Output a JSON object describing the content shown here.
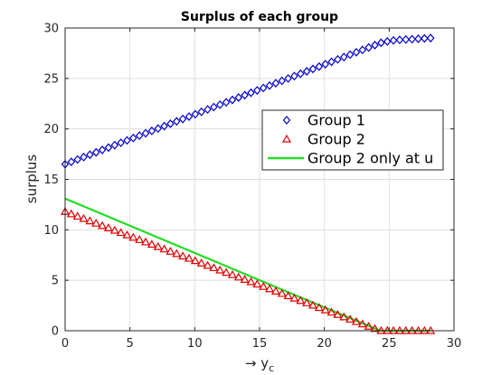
{
  "chart_data": {
    "type": "scatter",
    "title": "Surplus of each group",
    "xlabel_arrow": "→",
    "xlabel": "y",
    "xlabel_sub": "c",
    "ylabel": "surplus",
    "xlim": [
      0,
      30
    ],
    "ylim": [
      0,
      30
    ],
    "xticks": [
      0,
      5,
      10,
      15,
      20,
      25,
      30
    ],
    "yticks": [
      0,
      5,
      10,
      15,
      20,
      25,
      30
    ],
    "grid": true,
    "legend_position": "right",
    "series": [
      {
        "name": "Group 1",
        "marker": "diamond",
        "color": "#0000cc",
        "x": [
          0.0,
          24.5,
          25.5,
          28.2
        ],
        "y": [
          16.5,
          28.6,
          28.8,
          29.0
        ],
        "n_points": 60
      },
      {
        "name": "Group 2",
        "marker": "triangle",
        "color": "#e00000",
        "x": [
          0.0,
          24.3,
          28.2
        ],
        "y": [
          11.8,
          0.0,
          0.0
        ],
        "n_points": 60
      },
      {
        "name": "Group 2 only at u",
        "marker": "line",
        "color": "#22dd22",
        "x": [
          0.0,
          24.3,
          28.2
        ],
        "y": [
          13.1,
          0.0,
          0.0
        ]
      }
    ]
  }
}
